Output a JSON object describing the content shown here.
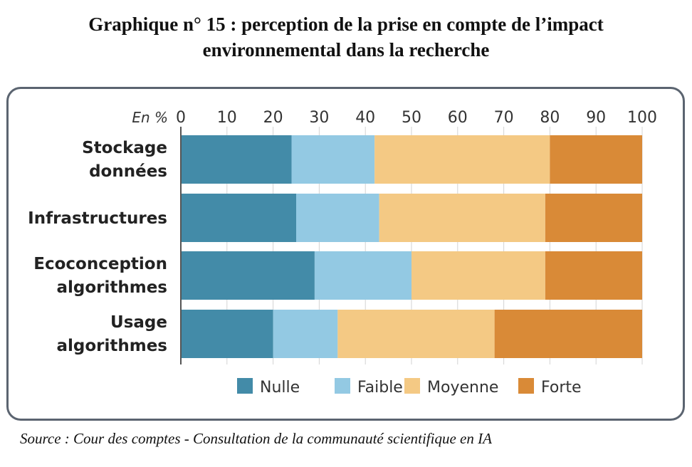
{
  "title_line1": "Graphique n° 15 : perception de la prise en compte de l’impact",
  "title_line2": "environnemental dans la recherche",
  "source": "Source : Cour des comptes - Consultation de la communauté scientifique en IA",
  "chart_data": {
    "type": "bar",
    "orientation": "horizontal",
    "stacked": true,
    "unit_label": "En %",
    "xlim": [
      0,
      100
    ],
    "ticks": [
      "0",
      "10",
      "20",
      "30",
      "40",
      "50",
      "60",
      "70",
      "80",
      "90",
      "100"
    ],
    "grid": true,
    "legend_position": "bottom",
    "categories": [
      [
        "Stockage",
        "données"
      ],
      [
        "Infrastructures"
      ],
      [
        "Ecoconception",
        "algorithmes"
      ],
      [
        "Usage",
        "algorithmes"
      ]
    ],
    "series": [
      {
        "name": "Nulle",
        "color": "#438ba8",
        "values": [
          24,
          25,
          29,
          20
        ]
      },
      {
        "name": "Faible",
        "color": "#93c9e3",
        "values": [
          18,
          18,
          21,
          14
        ]
      },
      {
        "name": "Moyenne",
        "color": "#f4c984",
        "values": [
          38,
          36,
          29,
          34
        ]
      },
      {
        "name": "Forte",
        "color": "#d98a37",
        "values": [
          20,
          21,
          21,
          32
        ]
      }
    ]
  }
}
